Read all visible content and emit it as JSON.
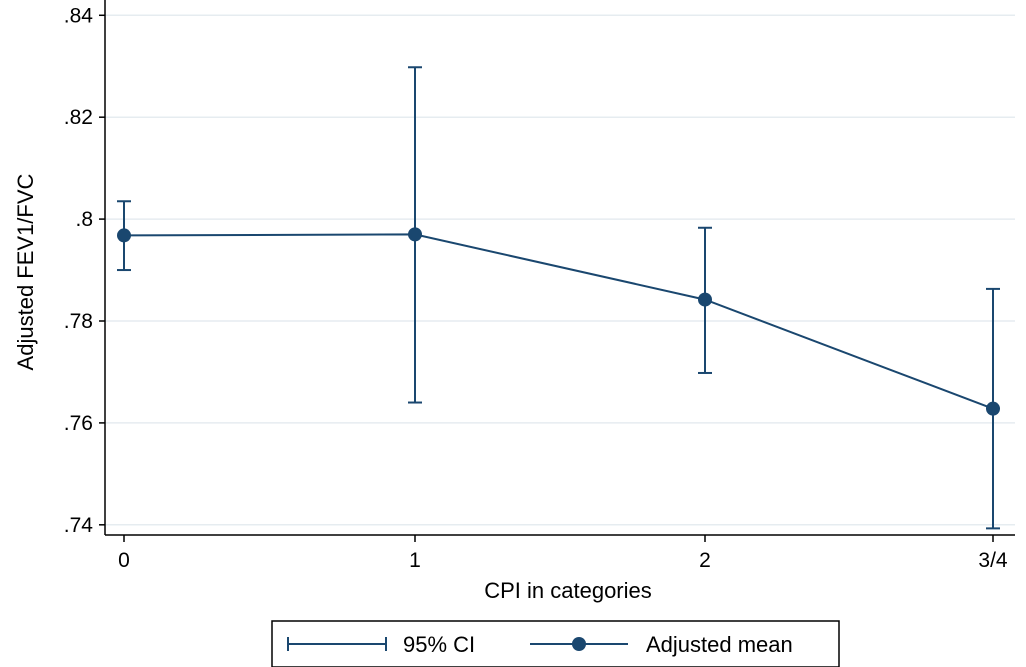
{
  "chart_data": {
    "type": "line",
    "title": "",
    "xlabel": "CPI in categories",
    "ylabel": "Adjusted FEV1/FVC",
    "categories": [
      "0",
      "1",
      "2",
      "3/4"
    ],
    "ylim": [
      0.738,
      0.843
    ],
    "yticks": [
      0.74,
      0.76,
      0.78,
      0.8,
      0.82,
      0.84
    ],
    "ytick_labels": [
      ".74",
      ".76",
      ".78",
      ".8",
      ".82",
      ".84"
    ],
    "grid": true,
    "legend_position": "bottom",
    "series": [
      {
        "name": "Adjusted mean",
        "values": [
          0.7968,
          0.797,
          0.7842,
          0.7628
        ],
        "color": "#1a476f"
      }
    ],
    "error_bars": {
      "name": "95% CI",
      "lower": [
        0.79,
        0.764,
        0.7698,
        0.7393
      ],
      "upper": [
        0.8035,
        0.8298,
        0.7983,
        0.7863
      ],
      "color": "#1a476f"
    }
  },
  "legend": {
    "ci_label": "95% CI",
    "mean_label": "Adjusted mean"
  }
}
